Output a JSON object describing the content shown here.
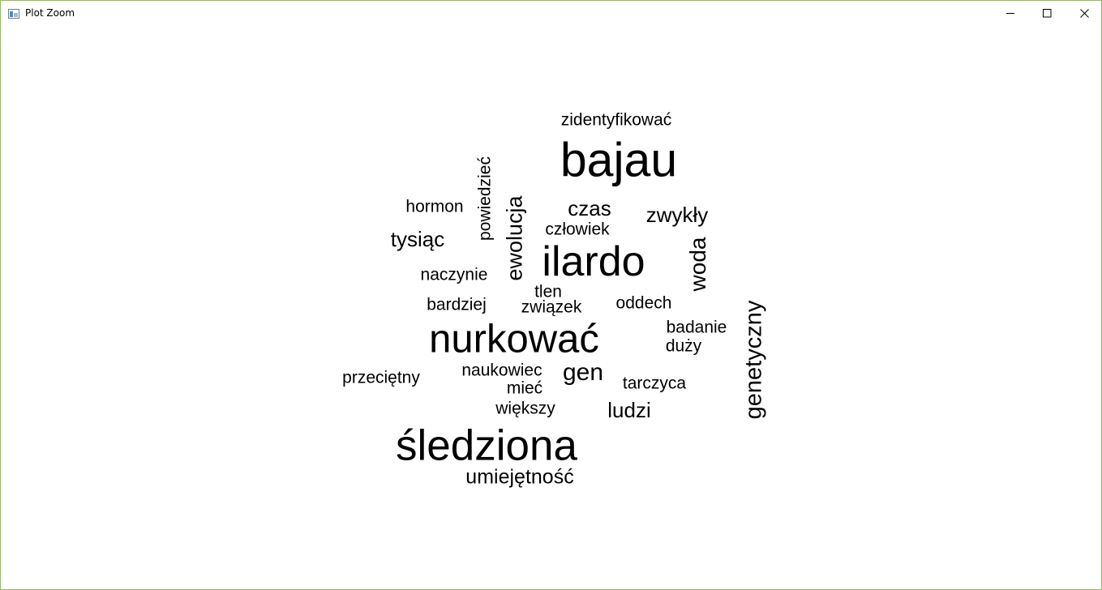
{
  "window": {
    "title": "Plot Zoom",
    "icon": "plot-window-icon",
    "controls": {
      "minimize_icon": "minimize-icon",
      "maximize_icon": "maximize-icon",
      "close_icon": "close-icon"
    },
    "accent_border": "#8fc24a"
  },
  "wordcloud": {
    "text_color": "#000000",
    "words": [
      "zidentyfikować",
      "bajau",
      "powiedzieć",
      "hormon",
      "ewolucja",
      "czas",
      "zwykły",
      "człowiek",
      "tysiąc",
      "ilardo",
      "woda",
      "naczynie",
      "tlen",
      "bardziej",
      "związek",
      "oddech",
      "genetyczny",
      "nurkować",
      "badanie",
      "duży",
      "naukowiec",
      "gen",
      "przeciętny",
      "mieć",
      "tarczyca",
      "większy",
      "ludzi",
      "śledziona",
      "umiejętność"
    ]
  }
}
